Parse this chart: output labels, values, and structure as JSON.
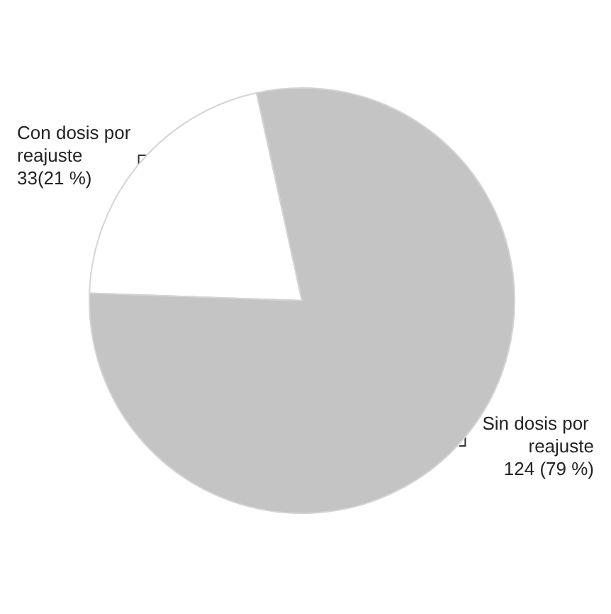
{
  "chart_data": {
    "type": "pie",
    "categories": [
      "Con dosis por reajuste",
      "Sin dosis por reajuste"
    ],
    "values": [
      33,
      124
    ],
    "value_labels": [
      "33(21 %)",
      "124 (79 %)"
    ],
    "colors": [
      "#ffffff",
      "#c4c4c4"
    ],
    "legend": false
  }
}
